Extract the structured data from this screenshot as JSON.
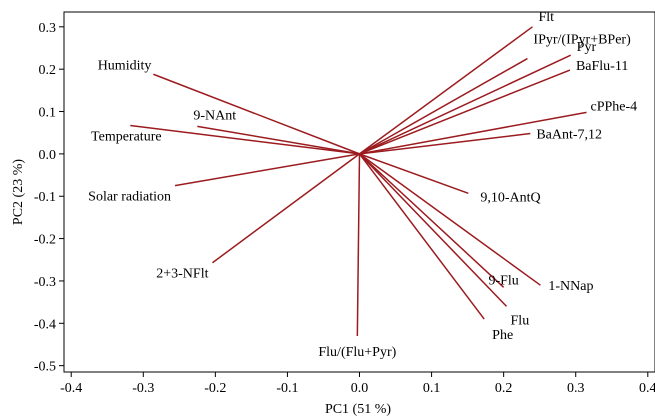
{
  "chart_data": {
    "type": "scatter",
    "subtype": "biplot-loadings",
    "xlabel": "PC1 (51 %)",
    "ylabel": "PC2 (23 %)",
    "xlim": [
      -0.41,
      0.41
    ],
    "ylim": [
      -0.515,
      0.335
    ],
    "xticks": [
      -0.4,
      -0.3,
      -0.2,
      -0.1,
      0.0,
      0.1,
      0.2,
      0.3,
      0.4
    ],
    "xtick_labels": [
      "-0.4",
      "-0.3",
      "-0.2",
      "-0.1",
      "0.0",
      "0.1",
      "0.2",
      "0.3",
      "0.4"
    ],
    "yticks": [
      0.3,
      0.2,
      0.1,
      0.0,
      -0.1,
      -0.2,
      -0.3,
      -0.4,
      -0.5
    ],
    "ytick_labels": [
      "0.3",
      "0.2",
      "0.1",
      "0.0",
      "-0.1",
      "-0.2",
      "-0.3",
      "-0.4",
      "-0.5"
    ],
    "grid": false,
    "line_color": "#9b1b1f",
    "vectors": [
      {
        "name": "Flt",
        "x": 0.24,
        "y": 0.3
      },
      {
        "name": "IPyr/(IPyr+BPer)",
        "x": 0.233,
        "y": 0.225
      },
      {
        "name": "Pyr",
        "x": 0.293,
        "y": 0.233
      },
      {
        "name": "BaFlu-11",
        "x": 0.292,
        "y": 0.198
      },
      {
        "name": "cPPhe-4",
        "x": 0.315,
        "y": 0.098
      },
      {
        "name": "BaAnt-7,12",
        "x": 0.237,
        "y": 0.048
      },
      {
        "name": "9,10-AntQ",
        "x": 0.151,
        "y": -0.093
      },
      {
        "name": "1-NNap",
        "x": 0.251,
        "y": -0.31
      },
      {
        "name": "9-Flu",
        "x": 0.2,
        "y": -0.315
      },
      {
        "name": "Flu",
        "x": 0.204,
        "y": -0.36
      },
      {
        "name": "Phe",
        "x": 0.173,
        "y": -0.39
      },
      {
        "name": "Flu/(Flu+Pyr)",
        "x": -0.003,
        "y": -0.43
      },
      {
        "name": "2+3-NFlt",
        "x": -0.204,
        "y": -0.257
      },
      {
        "name": "Solar radiation",
        "x": -0.256,
        "y": -0.075
      },
      {
        "name": "Temperature",
        "x": -0.318,
        "y": 0.067
      },
      {
        "name": "9-NAnt",
        "x": -0.225,
        "y": 0.065
      },
      {
        "name": "Humidity",
        "x": -0.286,
        "y": 0.188
      }
    ]
  }
}
